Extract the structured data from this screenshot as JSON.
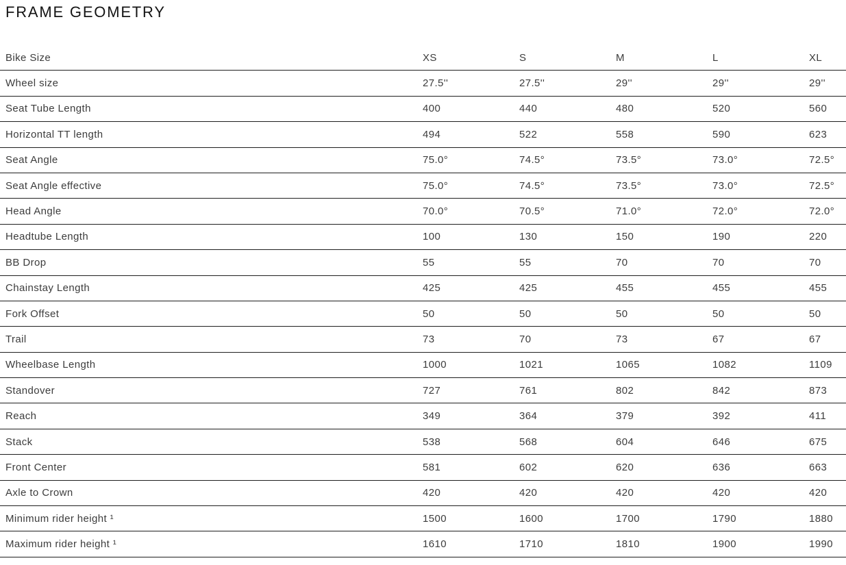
{
  "title": "FRAME GEOMETRY",
  "colors": {
    "background": "#ffffff",
    "title_text": "#141414",
    "body_text": "#3c3c3c",
    "row_border": "#1e1e1e"
  },
  "table": {
    "header": {
      "label": "Bike Size",
      "sizes": [
        "XS",
        "S",
        "M",
        "L",
        "XL"
      ]
    },
    "rows": [
      {
        "label": "Wheel size",
        "values": [
          "27.5''",
          "27.5''",
          "29''",
          "29''",
          "29''"
        ]
      },
      {
        "label": "Seat Tube Length",
        "values": [
          "400",
          "440",
          "480",
          "520",
          "560"
        ]
      },
      {
        "label": "Horizontal TT length",
        "values": [
          "494",
          "522",
          "558",
          "590",
          "623"
        ]
      },
      {
        "label": "Seat Angle",
        "values": [
          "75.0°",
          "74.5°",
          "73.5°",
          "73.0°",
          "72.5°"
        ]
      },
      {
        "label": "Seat Angle effective",
        "values": [
          "75.0°",
          "74.5°",
          "73.5°",
          "73.0°",
          "72.5°"
        ]
      },
      {
        "label": "Head Angle",
        "values": [
          "70.0°",
          "70.5°",
          "71.0°",
          "72.0°",
          "72.0°"
        ]
      },
      {
        "label": "Headtube Length",
        "values": [
          "100",
          "130",
          "150",
          "190",
          "220"
        ]
      },
      {
        "label": "BB Drop",
        "values": [
          "55",
          "55",
          "70",
          "70",
          "70"
        ]
      },
      {
        "label": "Chainstay Length",
        "values": [
          "425",
          "425",
          "455",
          "455",
          "455"
        ]
      },
      {
        "label": "Fork Offset",
        "values": [
          "50",
          "50",
          "50",
          "50",
          "50"
        ]
      },
      {
        "label": "Trail",
        "values": [
          "73",
          "70",
          "73",
          "67",
          "67"
        ]
      },
      {
        "label": "Wheelbase Length",
        "values": [
          "1000",
          "1021",
          "1065",
          "1082",
          "1109"
        ]
      },
      {
        "label": "Standover",
        "values": [
          "727",
          "761",
          "802",
          "842",
          "873"
        ]
      },
      {
        "label": "Reach",
        "values": [
          "349",
          "364",
          "379",
          "392",
          "411"
        ]
      },
      {
        "label": "Stack",
        "values": [
          "538",
          "568",
          "604",
          "646",
          "675"
        ]
      },
      {
        "label": "Front Center",
        "values": [
          "581",
          "602",
          "620",
          "636",
          "663"
        ]
      },
      {
        "label": "Axle to Crown",
        "values": [
          "420",
          "420",
          "420",
          "420",
          "420"
        ]
      },
      {
        "label": "Minimum rider height ¹",
        "values": [
          "1500",
          "1600",
          "1700",
          "1790",
          "1880"
        ]
      },
      {
        "label": "Maximum rider height ¹",
        "values": [
          "1610",
          "1710",
          "1810",
          "1900",
          "1990"
        ]
      }
    ]
  }
}
